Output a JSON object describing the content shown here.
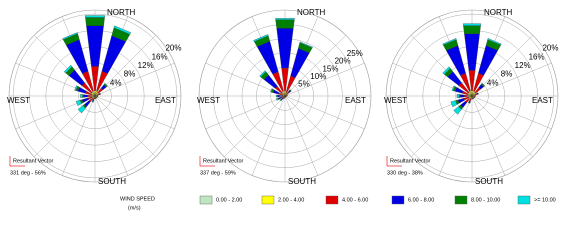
{
  "chart_data": [
    {
      "type": "windrose",
      "directions": [
        "N",
        "NNE",
        "NE",
        "ENE",
        "E",
        "ESE",
        "SE",
        "SSE",
        "S",
        "SSW",
        "SW",
        "WSW",
        "W",
        "WNW",
        "NW",
        "NNW"
      ],
      "compass": {
        "north": "NORTH",
        "east": "EAST",
        "south": "SOUTH",
        "west": "WEST"
      },
      "resultant_title": "Resultant Vector",
      "resultant_label": "331 deg - 56%",
      "rlim": [
        0,
        21
      ],
      "rticks": [
        {
          "value": 4,
          "label": "4%"
        },
        {
          "value": 8,
          "label": "8%"
        },
        {
          "value": 12,
          "label": "12%"
        },
        {
          "value": 16,
          "label": "16%"
        },
        {
          "value": 20,
          "label": "20%"
        }
      ],
      "series": [
        {
          "values": [
            0.3,
            0.3,
            0.2,
            0.2,
            0.2,
            0.2,
            0.2,
            0.2,
            0.2,
            0.2,
            0.3,
            0.3,
            0.3,
            0.3,
            0.3,
            0.3
          ]
        },
        {
          "values": [
            1,
            1,
            0.8,
            0.5,
            0.3,
            0.3,
            0.3,
            0.3,
            0.3,
            0.4,
            0.5,
            0.5,
            0.5,
            0.6,
            0.8,
            1
          ]
        },
        {
          "values": [
            6,
            5,
            1.5,
            0.5,
            0.2,
            0.1,
            0.1,
            0.1,
            0.2,
            0.5,
            1,
            1,
            1,
            1.5,
            3,
            5
          ]
        },
        {
          "values": [
            10,
            9,
            1,
            0.2,
            0,
            0,
            0,
            0,
            0,
            0.3,
            1.5,
            1.5,
            1,
            2,
            4,
            8
          ]
        },
        {
          "values": [
            2,
            2,
            0.3,
            0,
            0,
            0,
            0,
            0,
            0,
            0.1,
            0.5,
            0.5,
            0.3,
            0.5,
            1,
            1.5
          ]
        },
        {
          "values": [
            0.5,
            0.5,
            0.1,
            0,
            0,
            0,
            0,
            0,
            0,
            0.1,
            1.5,
            1,
            0.5,
            0.3,
            0.5,
            0.3
          ]
        }
      ]
    },
    {
      "type": "windrose",
      "directions": [
        "N",
        "NNE",
        "NE",
        "ENE",
        "E",
        "ESE",
        "SE",
        "SSE",
        "S",
        "SSW",
        "SW",
        "WSW",
        "W",
        "WNW",
        "NW",
        "NNW"
      ],
      "compass": {
        "north": "NORTH",
        "east": "EAST",
        "south": "SOUTH",
        "west": "WEST"
      },
      "resultant_title": "Resultant Vector",
      "resultant_label": "337 deg - 59%",
      "rlim": [
        0,
        30
      ],
      "rticks": [
        {
          "value": 5,
          "label": "5%"
        },
        {
          "value": 10,
          "label": "10%"
        },
        {
          "value": 15,
          "label": "15%"
        },
        {
          "value": 20,
          "label": "20%"
        },
        {
          "value": 25,
          "label": "25%"
        }
      ],
      "series": [
        {
          "values": [
            0.3,
            0.3,
            0.2,
            0.2,
            0.2,
            0.2,
            0.2,
            0.2,
            0.2,
            0.2,
            0.2,
            0.2,
            0.3,
            0.3,
            0.3,
            0.3
          ]
        },
        {
          "values": [
            1.5,
            1,
            0.6,
            0.4,
            0.3,
            0.2,
            0.2,
            0.2,
            0.2,
            0.3,
            0.4,
            0.4,
            0.4,
            0.6,
            1,
            1.5
          ]
        },
        {
          "values": [
            8,
            6,
            1,
            0.3,
            0.1,
            0,
            0,
            0,
            0.1,
            0.3,
            0.6,
            0.8,
            0.8,
            1.5,
            3,
            7
          ]
        },
        {
          "values": [
            14,
            10,
            0.8,
            0,
            0,
            0,
            0,
            0,
            0,
            0.2,
            0.6,
            1,
            1,
            2,
            5,
            11
          ]
        },
        {
          "values": [
            3,
            2,
            0.2,
            0,
            0,
            0,
            0,
            0,
            0,
            0,
            0.2,
            0.3,
            0.3,
            0.6,
            1.5,
            2
          ]
        },
        {
          "values": [
            0.5,
            0.3,
            0,
            0,
            0,
            0,
            0,
            0,
            0,
            0,
            0.3,
            0.5,
            0.3,
            0.3,
            0.5,
            0.5
          ]
        }
      ]
    },
    {
      "type": "windrose",
      "directions": [
        "N",
        "NNE",
        "NE",
        "ENE",
        "E",
        "ESE",
        "SE",
        "SSE",
        "S",
        "SSW",
        "SW",
        "WSW",
        "W",
        "WNW",
        "NW",
        "NNW"
      ],
      "compass": {
        "north": "NORTH",
        "east": "EAST",
        "south": "SOUTH",
        "west": "WEST"
      },
      "resultant_title": "Resultant Vector",
      "resultant_label": "330 deg - 38%",
      "rlim": [
        0,
        21
      ],
      "rticks": [
        {
          "value": 4,
          "label": "4%"
        },
        {
          "value": 8,
          "label": "8%"
        },
        {
          "value": 12,
          "label": "12%"
        },
        {
          "value": 16,
          "label": "16%"
        },
        {
          "value": 20,
          "label": "20%"
        }
      ],
      "series": [
        {
          "values": [
            0.3,
            0.3,
            0.3,
            0.2,
            0.2,
            0.2,
            0.2,
            0.2,
            0.2,
            0.3,
            0.3,
            0.3,
            0.3,
            0.3,
            0.3,
            0.3
          ]
        },
        {
          "values": [
            1,
            1,
            0.8,
            0.5,
            0.4,
            0.3,
            0.3,
            0.3,
            0.3,
            0.5,
            0.6,
            0.6,
            0.6,
            0.7,
            0.8,
            1
          ]
        },
        {
          "values": [
            5,
            4.5,
            1.5,
            0.6,
            0.3,
            0.2,
            0.2,
            0.2,
            0.3,
            0.6,
            1.2,
            1.2,
            1,
            1.5,
            3,
            4.5
          ]
        },
        {
          "values": [
            9,
            7,
            1,
            0.3,
            0,
            0,
            0,
            0,
            0,
            0.3,
            1.5,
            1.5,
            1,
            1.8,
            3.5,
            7
          ]
        },
        {
          "values": [
            2,
            1.5,
            0.3,
            0,
            0,
            0,
            0,
            0,
            0,
            0.1,
            0.6,
            0.6,
            0.3,
            0.5,
            1,
            1.5
          ]
        },
        {
          "values": [
            0.5,
            0.3,
            0.1,
            0,
            0,
            0,
            0,
            0,
            0,
            0.1,
            1.5,
            1.2,
            0.5,
            0.3,
            0.5,
            0.3
          ]
        }
      ]
    }
  ],
  "legend": {
    "title": "WIND SPEED",
    "unit": "(m/s)",
    "bins": [
      {
        "name": "0.00 - 2.00",
        "color": "#bfe6bf"
      },
      {
        "name": "2.00 - 4.00",
        "color": "#ffff00"
      },
      {
        "name": "4.00 - 6.00",
        "color": "#e00000"
      },
      {
        "name": "6.00 - 8.00",
        "color": "#0000e6"
      },
      {
        "name": "8.00 - 10.00",
        "color": "#008000"
      },
      {
        "name": ">= 10.00",
        "color": "#00e0e0"
      }
    ]
  }
}
